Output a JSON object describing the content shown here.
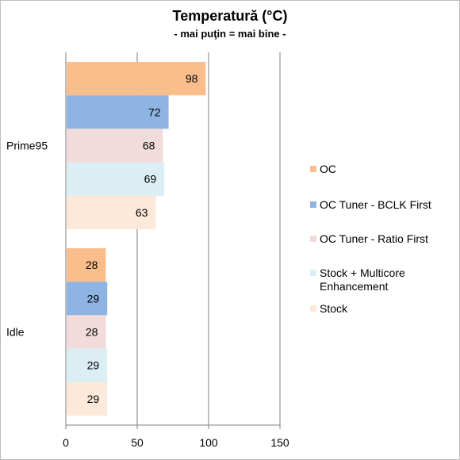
{
  "chart_data": {
    "type": "bar",
    "orientation": "horizontal",
    "title": "Temperatură (°C)",
    "subtitle": "- mai puţin = mai bine -",
    "categories": [
      "Prime95",
      "Idle"
    ],
    "series": [
      {
        "name": "OC",
        "color": "#F9BE8C",
        "values": [
          98,
          28
        ]
      },
      {
        "name": "OC Tuner - BCLK First",
        "color": "#8EB4E3",
        "values": [
          72,
          29
        ]
      },
      {
        "name": "OC Tuner - Ratio First",
        "color": "#F2DCDB",
        "values": [
          68,
          28
        ]
      },
      {
        "name": "Stock + Multicore Enhancement",
        "color": "#DBEEF4",
        "values": [
          69,
          29
        ]
      },
      {
        "name": "Stock",
        "color": "#FDE9D9",
        "values": [
          63,
          29
        ]
      }
    ],
    "xlim": [
      0,
      150
    ],
    "xticks": [
      0,
      50,
      100,
      150
    ],
    "grid": true,
    "legend_position": "right",
    "data_labels": true
  }
}
